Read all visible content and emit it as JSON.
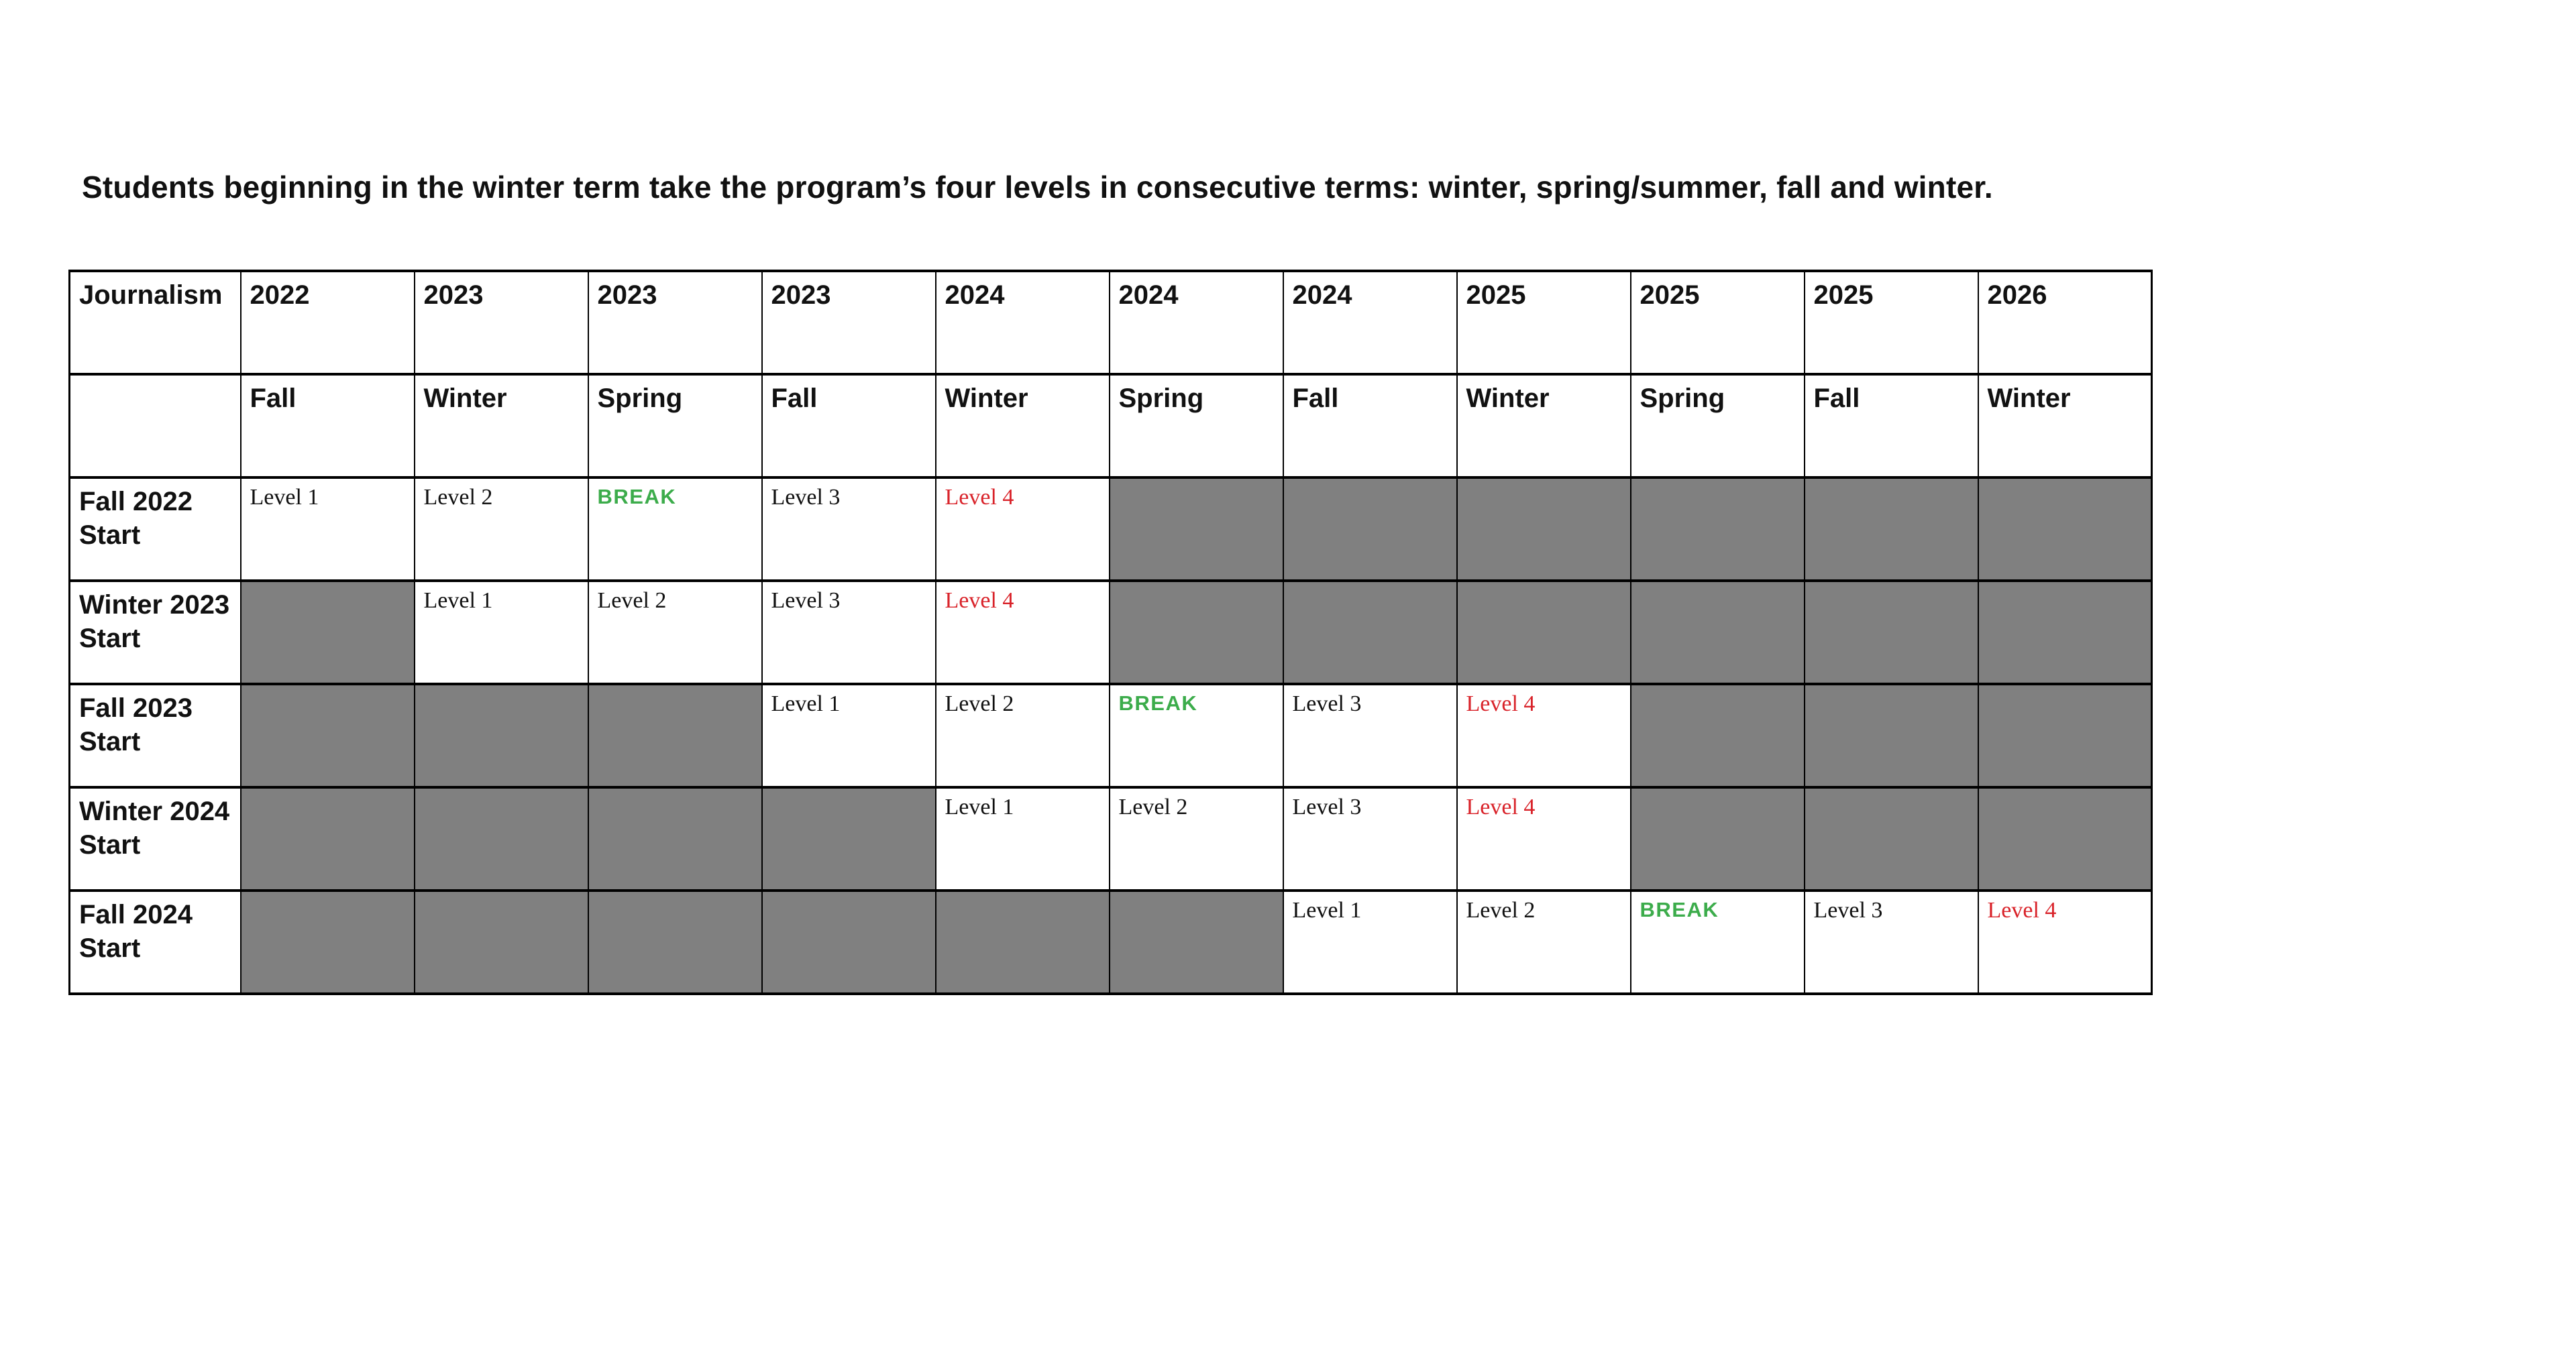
{
  "title": "Students beginning in the winter term take the program’s four levels in consecutive terms: winter, spring/summer, fall and winter.",
  "table": {
    "corner_label": "Journalism",
    "years": [
      "2022",
      "2023",
      "2023",
      "2023",
      "2024",
      "2024",
      "2024",
      "2025",
      "2025",
      "2025",
      "2026"
    ],
    "terms": [
      "Fall",
      "Winter",
      "Spring",
      "Fall",
      "Winter",
      "Spring",
      "Fall",
      "Winter",
      "Spring",
      "Fall",
      "Winter"
    ],
    "rows": [
      {
        "label": "Fall 2022 Start",
        "cells": [
          {
            "type": "level",
            "text": "Level 1"
          },
          {
            "type": "level",
            "text": "Level 2"
          },
          {
            "type": "break",
            "text": "BREAK"
          },
          {
            "type": "level",
            "text": "Level 3"
          },
          {
            "type": "level4",
            "text": "Level 4"
          },
          {
            "type": "gray",
            "text": ""
          },
          {
            "type": "gray",
            "text": ""
          },
          {
            "type": "gray",
            "text": ""
          },
          {
            "type": "gray",
            "text": ""
          },
          {
            "type": "gray",
            "text": ""
          },
          {
            "type": "gray",
            "text": ""
          }
        ]
      },
      {
        "label": "Winter 2023 Start",
        "cells": [
          {
            "type": "gray",
            "text": ""
          },
          {
            "type": "level",
            "text": "Level 1"
          },
          {
            "type": "level",
            "text": "Level 2"
          },
          {
            "type": "level",
            "text": "Level 3"
          },
          {
            "type": "level4",
            "text": "Level 4"
          },
          {
            "type": "gray",
            "text": ""
          },
          {
            "type": "gray",
            "text": ""
          },
          {
            "type": "gray",
            "text": ""
          },
          {
            "type": "gray",
            "text": ""
          },
          {
            "type": "gray",
            "text": ""
          },
          {
            "type": "gray",
            "text": ""
          }
        ]
      },
      {
        "label": "Fall 2023 Start",
        "cells": [
          {
            "type": "gray",
            "text": ""
          },
          {
            "type": "gray",
            "text": ""
          },
          {
            "type": "gray",
            "text": ""
          },
          {
            "type": "level",
            "text": "Level 1"
          },
          {
            "type": "level",
            "text": "Level 2"
          },
          {
            "type": "break",
            "text": "BREAK"
          },
          {
            "type": "level",
            "text": "Level 3"
          },
          {
            "type": "level4",
            "text": "Level 4"
          },
          {
            "type": "gray",
            "text": ""
          },
          {
            "type": "gray",
            "text": ""
          },
          {
            "type": "gray",
            "text": ""
          }
        ]
      },
      {
        "label": "Winter 2024 Start",
        "cells": [
          {
            "type": "gray",
            "text": ""
          },
          {
            "type": "gray",
            "text": ""
          },
          {
            "type": "gray",
            "text": ""
          },
          {
            "type": "gray",
            "text": ""
          },
          {
            "type": "level",
            "text": "Level 1"
          },
          {
            "type": "level",
            "text": "Level 2"
          },
          {
            "type": "level",
            "text": "Level 3"
          },
          {
            "type": "level4",
            "text": "Level 4"
          },
          {
            "type": "gray",
            "text": ""
          },
          {
            "type": "gray",
            "text": ""
          },
          {
            "type": "gray",
            "text": ""
          }
        ]
      },
      {
        "label": "Fall 2024 Start",
        "cells": [
          {
            "type": "gray",
            "text": ""
          },
          {
            "type": "gray",
            "text": ""
          },
          {
            "type": "gray",
            "text": ""
          },
          {
            "type": "gray",
            "text": ""
          },
          {
            "type": "gray",
            "text": ""
          },
          {
            "type": "gray",
            "text": ""
          },
          {
            "type": "level",
            "text": "Level 1"
          },
          {
            "type": "level",
            "text": "Level 2"
          },
          {
            "type": "break",
            "text": "BREAK"
          },
          {
            "type": "level",
            "text": "Level 3"
          },
          {
            "type": "level4",
            "text": "Level 4"
          }
        ]
      }
    ],
    "colors": {
      "break_green": "#3cac4b",
      "level4_red": "#d9232a",
      "unavailable_gray": "#808080",
      "border_black": "#000000"
    }
  }
}
